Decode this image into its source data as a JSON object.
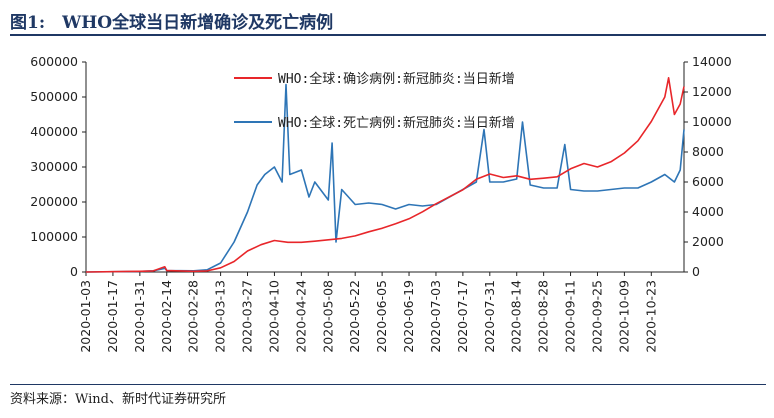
{
  "figure": {
    "title": "图1:　WHO全球当日新增确诊及死亡病例",
    "source": "资料来源：Wind、新时代证券研究所"
  },
  "colors": {
    "cases": "#e8262a",
    "deaths": "#2e75b6",
    "title": "#1f3864",
    "axis": "#222222"
  },
  "chart_data": {
    "type": "line",
    "grid": false,
    "legend_position": "top-right",
    "x_start": "2020-01-03",
    "x_end": "2020-11-09",
    "x_ticks": [
      "2020-01-03",
      "2020-01-17",
      "2020-01-31",
      "2020-02-14",
      "2020-02-28",
      "2020-03-13",
      "2020-03-27",
      "2020-04-10",
      "2020-04-24",
      "2020-05-08",
      "2020-05-22",
      "2020-06-05",
      "2020-06-19",
      "2020-07-03",
      "2020-07-17",
      "2020-07-31",
      "2020-08-14",
      "2020-08-28",
      "2020-09-11",
      "2020-09-25",
      "2020-10-09",
      "2020-10-23"
    ],
    "y_left": {
      "min": 0,
      "max": 600000,
      "ticks": [
        "0",
        "100000",
        "200000",
        "300000",
        "400000",
        "500000",
        "600000"
      ]
    },
    "y_right": {
      "min": 0,
      "max": 14000,
      "ticks": [
        "0",
        "2000",
        "4000",
        "6000",
        "8000",
        "10000",
        "12000",
        "14000"
      ]
    },
    "series": [
      {
        "name": "WHO:全球:确诊病例:新冠肺炎:当日新增",
        "axis": "left",
        "color": "#e8262a",
        "points": [
          [
            "2020-01-03",
            0
          ],
          [
            "2020-01-31",
            2000
          ],
          [
            "2020-02-07",
            3000
          ],
          [
            "2020-02-13",
            15000
          ],
          [
            "2020-02-14",
            4000
          ],
          [
            "2020-02-28",
            2000
          ],
          [
            "2020-03-06",
            3000
          ],
          [
            "2020-03-13",
            12000
          ],
          [
            "2020-03-20",
            30000
          ],
          [
            "2020-03-27",
            60000
          ],
          [
            "2020-04-03",
            78000
          ],
          [
            "2020-04-10",
            90000
          ],
          [
            "2020-04-17",
            85000
          ],
          [
            "2020-04-24",
            85000
          ],
          [
            "2020-05-01",
            88000
          ],
          [
            "2020-05-08",
            92000
          ],
          [
            "2020-05-15",
            96000
          ],
          [
            "2020-05-22",
            103000
          ],
          [
            "2020-05-29",
            115000
          ],
          [
            "2020-06-05",
            125000
          ],
          [
            "2020-06-12",
            138000
          ],
          [
            "2020-06-19",
            152000
          ],
          [
            "2020-06-26",
            172000
          ],
          [
            "2020-07-03",
            195000
          ],
          [
            "2020-07-10",
            215000
          ],
          [
            "2020-07-17",
            235000
          ],
          [
            "2020-07-24",
            265000
          ],
          [
            "2020-07-31",
            280000
          ],
          [
            "2020-08-07",
            270000
          ],
          [
            "2020-08-14",
            275000
          ],
          [
            "2020-08-21",
            265000
          ],
          [
            "2020-08-28",
            268000
          ],
          [
            "2020-09-04",
            272000
          ],
          [
            "2020-09-11",
            295000
          ],
          [
            "2020-09-18",
            310000
          ],
          [
            "2020-09-25",
            300000
          ],
          [
            "2020-10-02",
            315000
          ],
          [
            "2020-10-09",
            340000
          ],
          [
            "2020-10-16",
            375000
          ],
          [
            "2020-10-23",
            430000
          ],
          [
            "2020-10-30",
            500000
          ],
          [
            "2020-11-01",
            555000
          ],
          [
            "2020-11-04",
            450000
          ],
          [
            "2020-11-07",
            480000
          ],
          [
            "2020-11-09",
            530000
          ]
        ]
      },
      {
        "name": "WHO:全球:死亡病例:新冠肺炎:当日新增",
        "axis": "right",
        "color": "#2e75b6",
        "points": [
          [
            "2020-01-03",
            0
          ],
          [
            "2020-01-31",
            40
          ],
          [
            "2020-02-07",
            80
          ],
          [
            "2020-02-13",
            250
          ],
          [
            "2020-02-14",
            100
          ],
          [
            "2020-02-28",
            80
          ],
          [
            "2020-03-06",
            150
          ],
          [
            "2020-03-13",
            600
          ],
          [
            "2020-03-20",
            2000
          ],
          [
            "2020-03-27",
            4000
          ],
          [
            "2020-04-01",
            5800
          ],
          [
            "2020-04-05",
            6500
          ],
          [
            "2020-04-10",
            7000
          ],
          [
            "2020-04-14",
            6000
          ],
          [
            "2020-04-16",
            12500
          ],
          [
            "2020-04-18",
            6500
          ],
          [
            "2020-04-24",
            6800
          ],
          [
            "2020-04-28",
            5000
          ],
          [
            "2020-05-01",
            6000
          ],
          [
            "2020-05-08",
            4800
          ],
          [
            "2020-05-10",
            8600
          ],
          [
            "2020-05-12",
            2000
          ],
          [
            "2020-05-15",
            5500
          ],
          [
            "2020-05-22",
            4500
          ],
          [
            "2020-05-29",
            4600
          ],
          [
            "2020-06-05",
            4500
          ],
          [
            "2020-06-12",
            4200
          ],
          [
            "2020-06-19",
            4500
          ],
          [
            "2020-06-26",
            4400
          ],
          [
            "2020-07-03",
            4500
          ],
          [
            "2020-07-10",
            5000
          ],
          [
            "2020-07-17",
            5500
          ],
          [
            "2020-07-24",
            6000
          ],
          [
            "2020-07-28",
            9500
          ],
          [
            "2020-07-31",
            6000
          ],
          [
            "2020-08-07",
            6000
          ],
          [
            "2020-08-14",
            6200
          ],
          [
            "2020-08-17",
            10000
          ],
          [
            "2020-08-21",
            5800
          ],
          [
            "2020-08-28",
            5600
          ],
          [
            "2020-09-04",
            5600
          ],
          [
            "2020-09-08",
            8500
          ],
          [
            "2020-09-11",
            5500
          ],
          [
            "2020-09-18",
            5400
          ],
          [
            "2020-09-25",
            5400
          ],
          [
            "2020-10-02",
            5500
          ],
          [
            "2020-10-09",
            5600
          ],
          [
            "2020-10-16",
            5600
          ],
          [
            "2020-10-23",
            6000
          ],
          [
            "2020-10-30",
            6500
          ],
          [
            "2020-11-04",
            6000
          ],
          [
            "2020-11-07",
            6800
          ],
          [
            "2020-11-09",
            9500
          ]
        ]
      }
    ]
  }
}
